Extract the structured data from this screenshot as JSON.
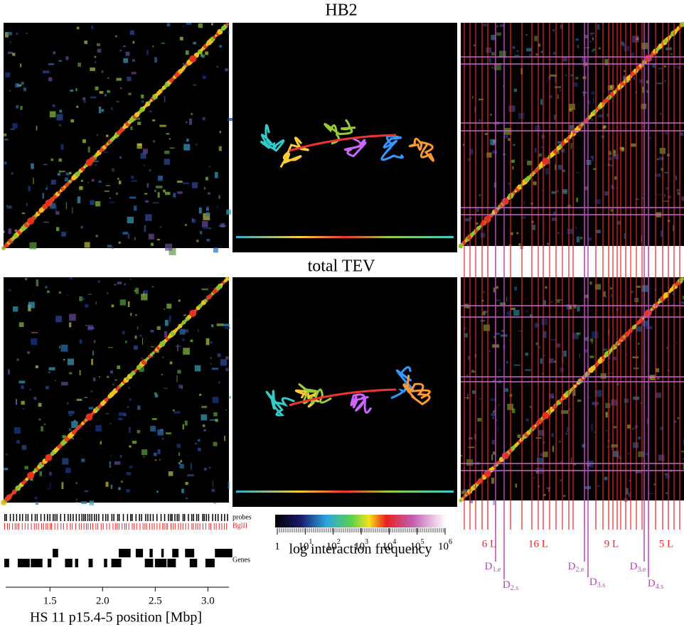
{
  "titles": {
    "top": "HB2",
    "bottom": "total TEV"
  },
  "tracks": {
    "probes": "probes",
    "bglii": "BglII",
    "genes": "Genes"
  },
  "genome_axis": {
    "label": "HS 11 p15.4-5 position [Mbp]",
    "xlim": [
      1.08,
      3.2
    ],
    "xticks": [
      1.5,
      {
        "value": 2,
        "label": "2.0"
      },
      2.5,
      {
        "value": 3,
        "label": "3.0"
      }
    ]
  },
  "colorbar": {
    "label": "log interaction frequency",
    "ticks": [
      {
        "base": "1",
        "exp": ""
      },
      {
        "base": "10",
        "exp": "1"
      },
      {
        "base": "10",
        "exp": "2"
      },
      {
        "base": "10",
        "exp": "3"
      },
      {
        "base": "10",
        "exp": "4"
      },
      {
        "base": "10",
        "exp": "5"
      },
      {
        "base": "10",
        "exp": "6"
      }
    ]
  },
  "domains": [
    "6 L",
    "16 L",
    "9 L",
    "5 L"
  ],
  "boundaries": [
    {
      "letter": "D",
      "sub": "1.e"
    },
    {
      "letter": "D",
      "sub": "2.s"
    },
    {
      "letter": "D",
      "sub": "2.e"
    },
    {
      "letter": "D",
      "sub": "3.s"
    },
    {
      "letter": "D",
      "sub": "3.e"
    },
    {
      "letter": "D",
      "sub": "4.s"
    }
  ]
}
